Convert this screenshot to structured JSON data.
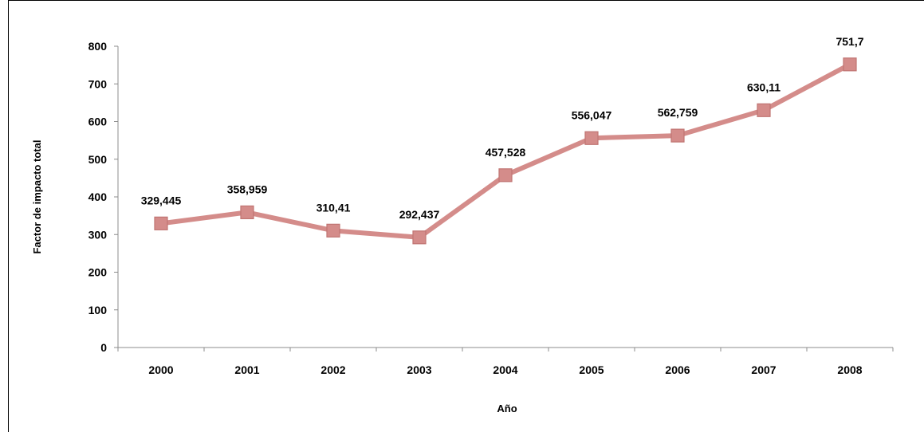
{
  "chart_data": {
    "type": "line",
    "title": "",
    "xlabel": "Año",
    "ylabel": "Factor de impacto total",
    "categories": [
      "2000",
      "2001",
      "2002",
      "2003",
      "2004",
      "2005",
      "2006",
      "2007",
      "2008"
    ],
    "series": [
      {
        "values": [
          329.445,
          358.959,
          310.41,
          292.437,
          457.528,
          556.047,
          562.759,
          630.11,
          751.7
        ],
        "data_labels": [
          "329,445",
          "358,959",
          "310,41",
          "292,437",
          "457,528",
          "556,047",
          "562,759",
          "630,11",
          "751,7"
        ],
        "color": "#d48c8a",
        "marker": "square"
      }
    ],
    "ylim": [
      0,
      800
    ],
    "yticks": [
      0,
      100,
      200,
      300,
      400,
      500,
      600,
      700,
      800
    ],
    "grid": false,
    "legend": "none"
  }
}
